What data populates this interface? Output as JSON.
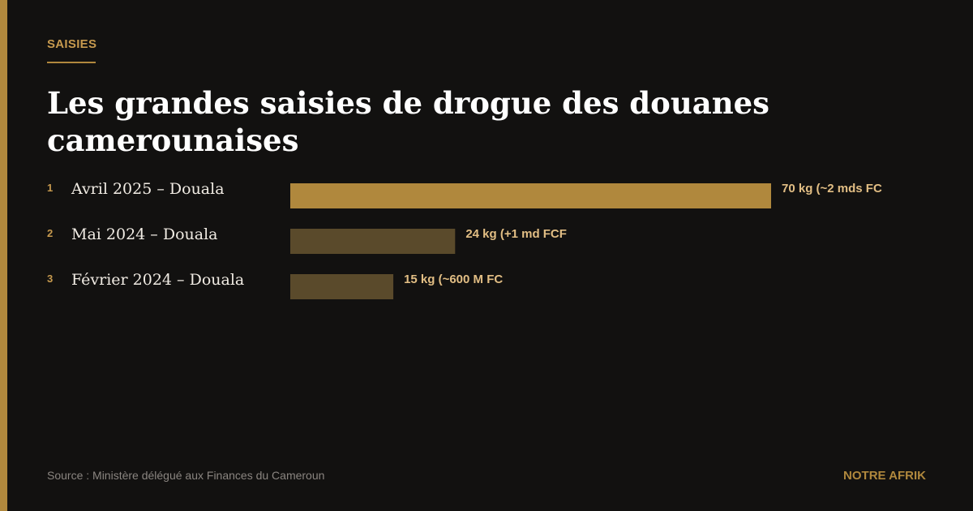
{
  "kicker": "SAISIES",
  "title": "Les grandes saisies de drogue des douanes camerounaises",
  "footer": {
    "source": "Source : Ministère délégué aux Finances du Cameroun",
    "brand": "NOTRE AFRIK"
  },
  "colors": {
    "background": "#121110",
    "accent": "#b0883d",
    "bar_highlight": "#b0883d",
    "bar_muted": "#5a4a2b",
    "value_text": "#e2be84"
  },
  "chart_data": {
    "type": "bar",
    "orientation": "horizontal",
    "ranks": [
      "1",
      "2",
      "3"
    ],
    "categories": [
      "Avril 2025 – Douala",
      "Mai 2024 – Douala",
      "Février 2024 – Douala"
    ],
    "values": [
      70,
      24,
      15
    ],
    "unit": "kg",
    "value_labels": [
      "70 kg (~2 mds FC",
      "24 kg (+1 md FCF",
      "15 kg (~600 M FC"
    ],
    "highlight_index": 0,
    "grid": false
  }
}
